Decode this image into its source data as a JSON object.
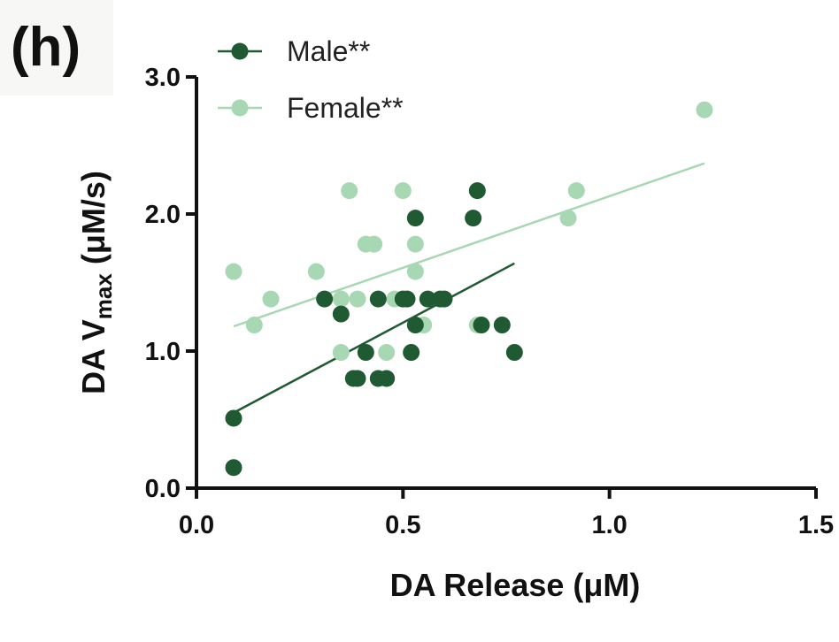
{
  "panel_label": "(h)",
  "chart_data": {
    "type": "scatter",
    "title": "",
    "xlabel": "DA Release (μM)",
    "ylabel_main": "DA V",
    "ylabel_sub": "max",
    "ylabel_unit": " (μM/s)",
    "xlim": [
      0,
      1.5
    ],
    "ylim": [
      0,
      3.0
    ],
    "x_ticks": [
      0,
      0.5,
      1.0,
      1.5
    ],
    "x_tick_labels": [
      "0.0",
      "0.5",
      "1.0",
      "1.5"
    ],
    "y_ticks": [
      0,
      1.0,
      2.0,
      3.0
    ],
    "y_tick_labels": [
      "0.0",
      "1.0",
      "2.0",
      "3.0"
    ],
    "legend_position": "top-left",
    "grid": false,
    "series": [
      {
        "name": "Male**",
        "color": "#1f5a32",
        "points": [
          [
            0.09,
            0.51
          ],
          [
            0.09,
            0.15
          ],
          [
            0.31,
            1.38
          ],
          [
            0.35,
            1.27
          ],
          [
            0.38,
            0.8
          ],
          [
            0.39,
            0.8
          ],
          [
            0.41,
            0.99
          ],
          [
            0.44,
            1.38
          ],
          [
            0.44,
            0.8
          ],
          [
            0.46,
            0.8
          ],
          [
            0.5,
            1.38
          ],
          [
            0.51,
            1.38
          ],
          [
            0.52,
            0.99
          ],
          [
            0.53,
            1.97
          ],
          [
            0.53,
            1.19
          ],
          [
            0.56,
            1.38
          ],
          [
            0.59,
            1.38
          ],
          [
            0.6,
            1.38
          ],
          [
            0.67,
            1.97
          ],
          [
            0.68,
            2.17
          ],
          [
            0.69,
            1.19
          ],
          [
            0.74,
            1.19
          ],
          [
            0.77,
            0.99
          ]
        ],
        "trend": [
          [
            0.09,
            0.55
          ],
          [
            0.77,
            1.64
          ]
        ]
      },
      {
        "name": "Female**",
        "color": "#a8d8b3",
        "points": [
          [
            0.09,
            1.58
          ],
          [
            0.14,
            1.19
          ],
          [
            0.18,
            1.38
          ],
          [
            0.29,
            1.58
          ],
          [
            0.35,
            1.38
          ],
          [
            0.35,
            0.99
          ],
          [
            0.37,
            2.17
          ],
          [
            0.39,
            1.38
          ],
          [
            0.41,
            1.78
          ],
          [
            0.43,
            1.78
          ],
          [
            0.46,
            0.99
          ],
          [
            0.48,
            1.38
          ],
          [
            0.5,
            2.17
          ],
          [
            0.53,
            1.78
          ],
          [
            0.53,
            1.58
          ],
          [
            0.55,
            1.19
          ],
          [
            0.68,
            1.19
          ],
          [
            0.9,
            1.97
          ],
          [
            0.92,
            2.17
          ],
          [
            1.23,
            2.76
          ]
        ],
        "trend": [
          [
            0.09,
            1.18
          ],
          [
            1.23,
            2.37
          ]
        ]
      }
    ]
  }
}
